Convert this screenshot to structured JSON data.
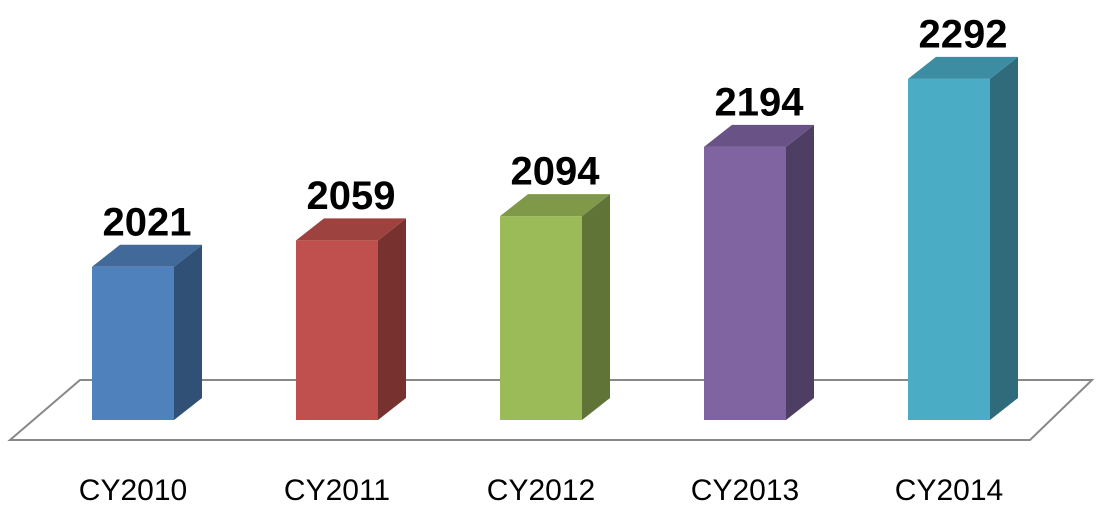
{
  "chart_data": {
    "type": "bar3d",
    "categories": [
      "CY2010",
      "CY2011",
      "CY2012",
      "CY2013",
      "CY2014"
    ],
    "values": [
      2021,
      2059,
      2094,
      2194,
      2292
    ],
    "colors": [
      "#4f81bd",
      "#c0504d",
      "#9bbb59",
      "#8064a2",
      "#4bacc6"
    ],
    "ylim": [
      1800,
      2400
    ]
  }
}
